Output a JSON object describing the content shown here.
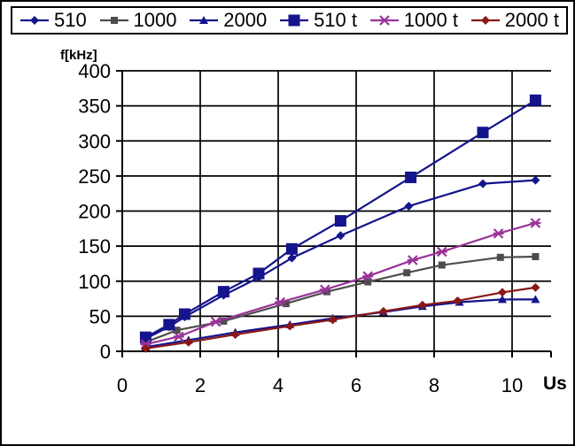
{
  "chart_data": {
    "type": "line",
    "title": "",
    "xlabel": "Us",
    "ylabel": "f[kHz]",
    "xlim": [
      0,
      11
    ],
    "ylim": [
      0,
      400
    ],
    "x_ticks": [
      0,
      2,
      4,
      6,
      8,
      10
    ],
    "y_ticks": [
      0,
      50,
      100,
      150,
      200,
      250,
      300,
      350,
      400
    ],
    "grid": true,
    "legend_position": "top",
    "series": [
      {
        "name": "510",
        "color": "#14148C",
        "marker": "diamond",
        "x": [
          0.6,
          1.2,
          1.6,
          2.6,
          3.5,
          4.35,
          5.6,
          7.35,
          9.25,
          10.6
        ],
        "y": [
          18,
          35,
          49,
          80,
          105,
          133,
          165,
          207,
          239,
          244
        ]
      },
      {
        "name": "1000",
        "color": "#4D4D4D",
        "marker": "square",
        "x": [
          0.6,
          1.4,
          2.6,
          4.2,
          5.25,
          6.3,
          7.3,
          8.2,
          9.7,
          10.6
        ],
        "y": [
          13,
          30,
          43,
          68,
          85,
          99,
          112,
          123,
          134,
          135
        ]
      },
      {
        "name": "2000",
        "color": "#14148C",
        "marker": "triangle",
        "x": [
          0.6,
          1.7,
          2.9,
          4.3,
          5.4,
          6.7,
          7.7,
          8.65,
          9.75,
          10.6
        ],
        "y": [
          6,
          16,
          27,
          38,
          47,
          56,
          64,
          70,
          74,
          74
        ]
      },
      {
        "name": "510 t",
        "color": "#14148C",
        "marker": "square-large",
        "x": [
          0.6,
          1.2,
          1.6,
          2.6,
          3.5,
          4.35,
          5.6,
          7.4,
          9.25,
          10.6
        ],
        "y": [
          20,
          38,
          53,
          85,
          111,
          146,
          186,
          248,
          312,
          358
        ]
      },
      {
        "name": "1000 t",
        "color": "#993399",
        "marker": "star",
        "x": [
          0.6,
          1.45,
          2.4,
          4.05,
          5.2,
          6.3,
          7.45,
          8.2,
          9.65,
          10.6
        ],
        "y": [
          10,
          21,
          42,
          70,
          88,
          107,
          130,
          142,
          168,
          183
        ]
      },
      {
        "name": "2000 t",
        "color": "#8B1717",
        "marker": "diamond",
        "x": [
          0.6,
          1.7,
          2.9,
          4.3,
          5.4,
          6.7,
          7.7,
          8.6,
          9.75,
          10.6
        ],
        "y": [
          4,
          13,
          24,
          36,
          45,
          57,
          66,
          72,
          84,
          91
        ]
      }
    ]
  }
}
